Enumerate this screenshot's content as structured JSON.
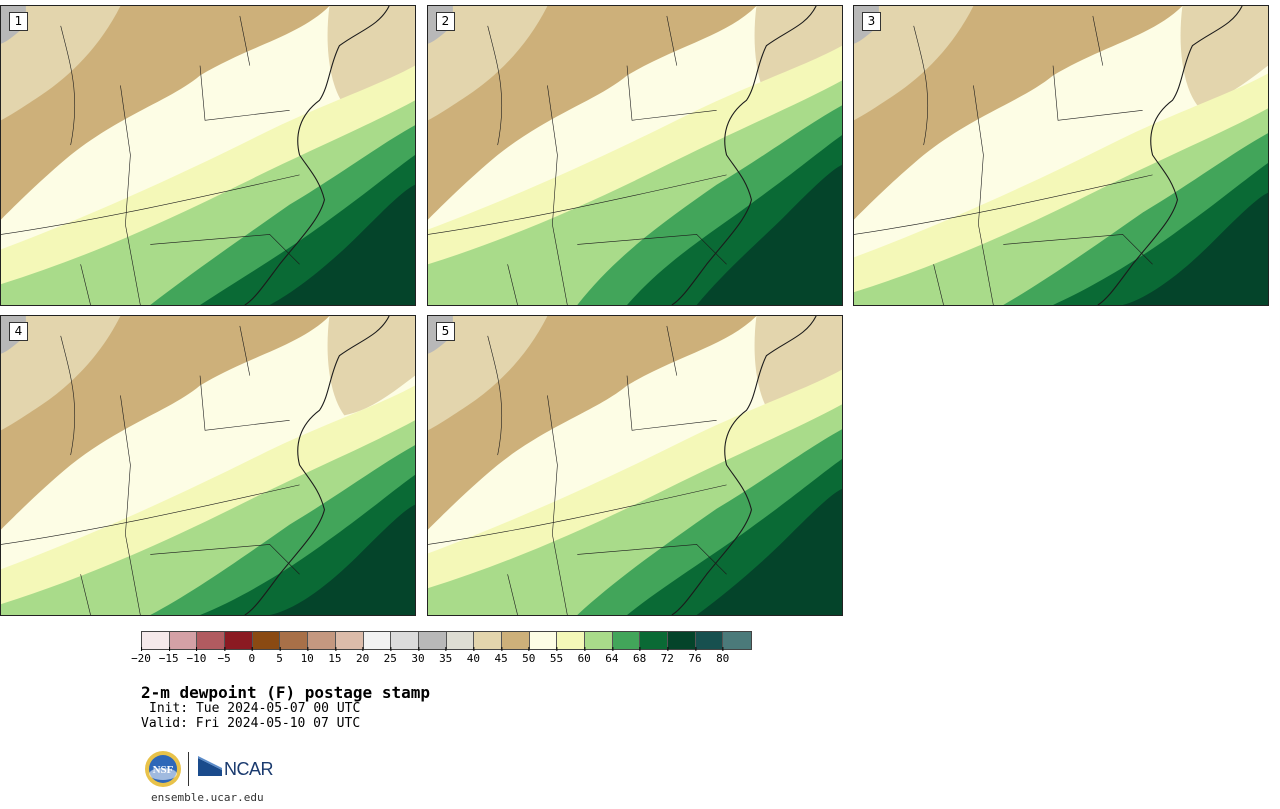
{
  "panels": [
    {
      "label": "1"
    },
    {
      "label": "2"
    },
    {
      "label": "3"
    },
    {
      "label": "4"
    },
    {
      "label": "5"
    }
  ],
  "colorbar": {
    "colors": [
      "#f5e9ea",
      "#d4a1a6",
      "#b15b60",
      "#8b1a22",
      "#8a4a12",
      "#a87048",
      "#c49880",
      "#dcbcaa",
      "#f2f2f2",
      "#dcdcdc",
      "#b8b8b8",
      "#deddd3",
      "#e3d5ad",
      "#cdb07a",
      "#fdfde5",
      "#f4f8b8",
      "#a9db8a",
      "#42a55a",
      "#0a6a35",
      "#04442a",
      "#17504f",
      "#4b7a7a"
    ],
    "tick_labels": [
      "−20",
      "−15",
      "−10",
      "−5",
      "0",
      "5",
      "10",
      "15",
      "20",
      "25",
      "30",
      "35",
      "40",
      "45",
      "50",
      "55",
      "60",
      "64",
      "68",
      "72",
      "76",
      "80"
    ]
  },
  "title": "2-m dewpoint (F) postage stamp",
  "init": "Init: Tue 2024-05-07 00 UTC",
  "valid": "Valid: Fri 2024-05-10 07 UTC",
  "branding": {
    "nsf_label": "NSF",
    "ncar_label": "NCAR",
    "site": "ensemble.ucar.edu"
  },
  "map": {
    "colors": {
      "tan_dark": "#cdb07a",
      "tan_light": "#e3d5ad",
      "gray_light": "#dcdcdc",
      "gray_mid": "#b8b8b8",
      "cream": "#fdfde5",
      "yellow": "#f4f8b8",
      "green_light": "#a9db8a",
      "green_mid": "#42a55a",
      "green_dark": "#0a6a35",
      "green_deep": "#04442a"
    }
  }
}
